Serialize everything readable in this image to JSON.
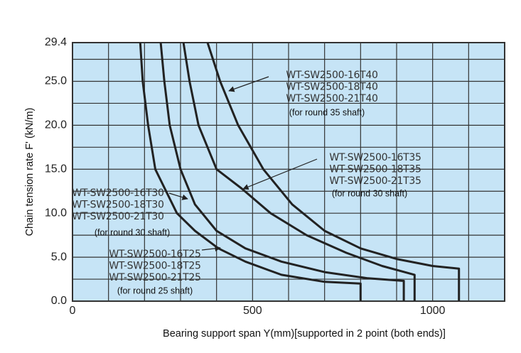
{
  "chart_data": {
    "type": "line",
    "xlabel": "Bearing support span Y(mm)[supported in 2 point (both ends)]",
    "ylabel": "Chain tension rate F' (kN/m)",
    "xlim": [
      0,
      1200
    ],
    "ylim": [
      0,
      29.4
    ],
    "xticks": [
      0,
      500,
      1000
    ],
    "yticks": [
      {
        "value": 0,
        "label": "0.0"
      },
      {
        "value": 5,
        "label": "5.0"
      },
      {
        "value": 10,
        "label": "10.0"
      },
      {
        "value": 15,
        "label": "15.0"
      },
      {
        "value": 20,
        "label": "20.0"
      },
      {
        "value": 25,
        "label": "25.0"
      },
      29.4
    ],
    "x_minor_ticks": [
      100,
      200,
      300,
      400,
      600,
      700,
      800,
      900,
      1100
    ],
    "y_minor_ticks": [
      2.5,
      7.5,
      12.5,
      17.5,
      22.5,
      27.5
    ],
    "grid": true,
    "background": "#c6e4f6",
    "series": [
      {
        "color": "#222222",
        "x": [
          188,
          195,
          210,
          230,
          290,
          340,
          405,
          480,
          580,
          700,
          800,
          800
        ],
        "values": [
          29.4,
          25,
          20,
          15,
          10,
          8,
          6,
          4.5,
          3,
          2.2,
          2.0,
          0
        ]
      },
      {
        "color": "#222222",
        "x": [
          245,
          255,
          270,
          300,
          340,
          400,
          480,
          580,
          700,
          820,
          920,
          920
        ],
        "values": [
          29.4,
          25,
          20,
          15,
          11,
          8,
          6,
          4.5,
          3.3,
          2.6,
          2.3,
          0
        ]
      },
      {
        "color": "#222222",
        "x": [
          308,
          325,
          350,
          400,
          470,
          550,
          650,
          760,
          860,
          950,
          950
        ],
        "values": [
          29.4,
          25,
          20,
          15,
          12.8,
          10,
          7.5,
          5.5,
          4,
          3.0,
          0
        ]
      },
      {
        "color": "#222222",
        "x": [
          375,
          410,
          460,
          530,
          610,
          700,
          800,
          900,
          1000,
          1073,
          1073
        ],
        "values": [
          29.4,
          25,
          20,
          15,
          11,
          8,
          6,
          4.8,
          4.0,
          3.7,
          0
        ]
      }
    ],
    "annotations": [
      {
        "lines": [
          "WT-SW2500-16T40",
          "WT-SW2500-18T40",
          "WT-SW2500-21T40"
        ],
        "note": "(for round 35 shaft)"
      },
      {
        "lines": [
          "WT-SW2500-16T35",
          "WT-SW2500-18T35",
          "WT-SW2500-21T35"
        ],
        "note": "(for round 30 shaft)"
      },
      {
        "lines": [
          "WT-SW2500-16T30",
          "WT-SW2500-18T30",
          "WT-SW2500-21T30"
        ],
        "note": "(for round 30 shaft)"
      },
      {
        "lines": [
          "WT-SW2500-16T25",
          "WT-SW2500-18T25",
          "WT-SW2500-21T25"
        ],
        "note": "(for round 25 shaft)"
      }
    ]
  }
}
